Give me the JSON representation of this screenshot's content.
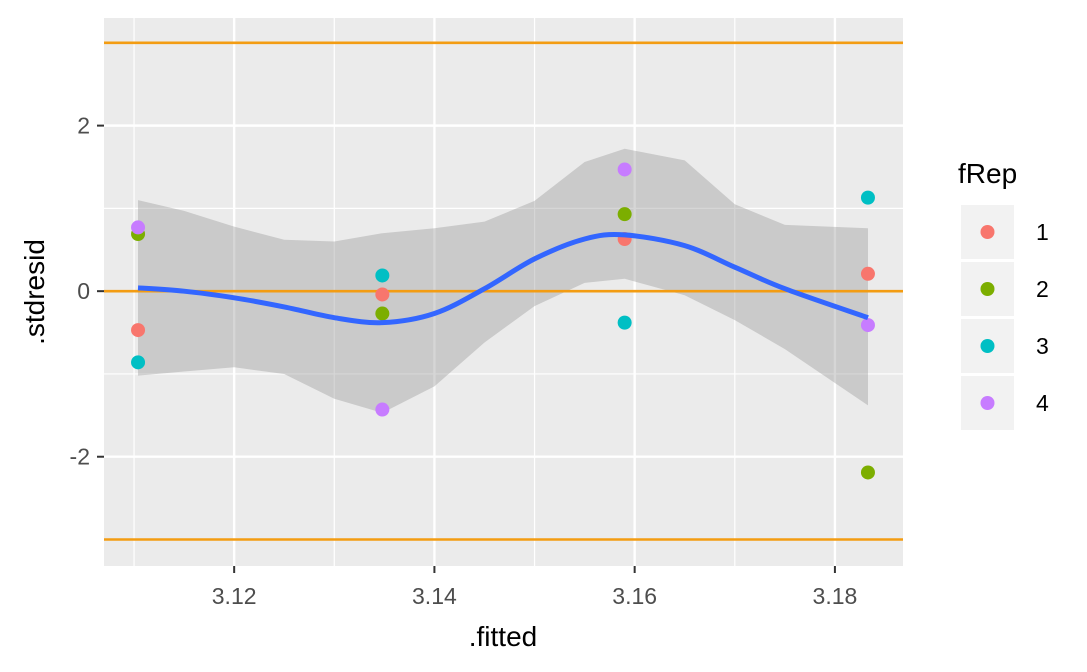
{
  "chart_data": {
    "type": "scatter",
    "xlabel": ".fitted",
    "ylabel": ".stdresid",
    "xlim": [
      3.107,
      3.1868
    ],
    "ylim": [
      -3.32,
      3.3
    ],
    "x_ticks": [
      3.12,
      3.14,
      3.16,
      3.18
    ],
    "x_tick_labels": [
      "3.12",
      "3.14",
      "3.16",
      "3.18"
    ],
    "y_ticks": [
      -2,
      0,
      2
    ],
    "y_tick_labels": [
      "-2",
      "0",
      "2"
    ],
    "grid": true,
    "reference_lines": {
      "y": [
        -3,
        0,
        3
      ],
      "color": "#F39C12"
    },
    "legend": {
      "title": "fRep",
      "placement": "right",
      "entries": [
        {
          "label": "1",
          "color": "#F8766D"
        },
        {
          "label": "2",
          "color": "#7CAE00"
        },
        {
          "label": "3",
          "color": "#00BFC4"
        },
        {
          "label": "4",
          "color": "#C77CFF"
        }
      ]
    },
    "series": [
      {
        "name": "1",
        "color": "#F8766D",
        "points": [
          [
            3.1104,
            -0.47
          ],
          [
            3.1348,
            -0.04
          ],
          [
            3.159,
            0.63
          ],
          [
            3.1833,
            0.21
          ]
        ]
      },
      {
        "name": "2",
        "color": "#7CAE00",
        "points": [
          [
            3.1104,
            0.69
          ],
          [
            3.1348,
            -0.27
          ],
          [
            3.159,
            0.93
          ],
          [
            3.1833,
            -2.19
          ]
        ]
      },
      {
        "name": "3",
        "color": "#00BFC4",
        "points": [
          [
            3.1104,
            -0.86
          ],
          [
            3.1348,
            0.19
          ],
          [
            3.159,
            -0.38
          ],
          [
            3.1833,
            1.13
          ]
        ]
      },
      {
        "name": "4",
        "color": "#C77CFF",
        "points": [
          [
            3.1104,
            0.77
          ],
          [
            3.1348,
            -1.43
          ],
          [
            3.159,
            1.47
          ],
          [
            3.1833,
            -0.41
          ]
        ]
      }
    ],
    "smooth": {
      "color": "#3366FF",
      "band_color": "#999999",
      "x": [
        3.1104,
        3.115,
        3.12,
        3.125,
        3.13,
        3.1348,
        3.14,
        3.145,
        3.15,
        3.155,
        3.159,
        3.165,
        3.17,
        3.175,
        3.1833
      ],
      "fit": [
        0.04,
        0.0,
        -0.08,
        -0.19,
        -0.32,
        -0.38,
        -0.27,
        0.03,
        0.39,
        0.63,
        0.68,
        0.55,
        0.29,
        0.03,
        -0.32
      ],
      "lower": [
        -1.02,
        -0.97,
        -0.92,
        -1.0,
        -1.3,
        -1.47,
        -1.15,
        -0.62,
        -0.18,
        0.1,
        0.15,
        -0.05,
        -0.35,
        -0.7,
        -1.38
      ],
      "upper": [
        1.1,
        0.97,
        0.78,
        0.62,
        0.6,
        0.7,
        0.76,
        0.84,
        1.09,
        1.56,
        1.72,
        1.58,
        1.05,
        0.8,
        0.76
      ]
    }
  }
}
